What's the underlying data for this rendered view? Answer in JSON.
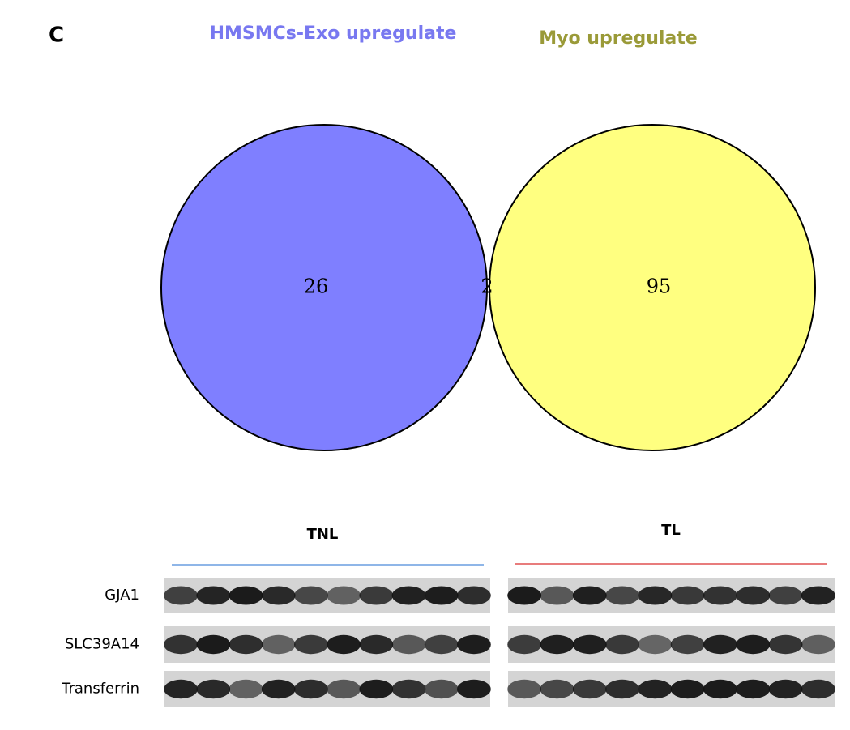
{
  "panel_label": "C",
  "venn": {
    "sets": [
      {
        "label": "HMSMCs-Exo upregulate",
        "color": "#7f7fff",
        "title_color": "#7878f0",
        "count": 26
      },
      {
        "label": "Myo upregulate",
        "color": "#ffff80",
        "title_color": "#9a9a38",
        "count": 95
      }
    ],
    "intersection": {
      "count": 2,
      "color": "#bcbc8c"
    }
  },
  "blot": {
    "groups": [
      {
        "label": "TNL",
        "line_color": "#6a9ee0"
      },
      {
        "label": "TL",
        "line_color": "#e05050"
      }
    ],
    "rows": [
      "GJA1",
      "SLC39A14",
      "Transferrin"
    ]
  }
}
